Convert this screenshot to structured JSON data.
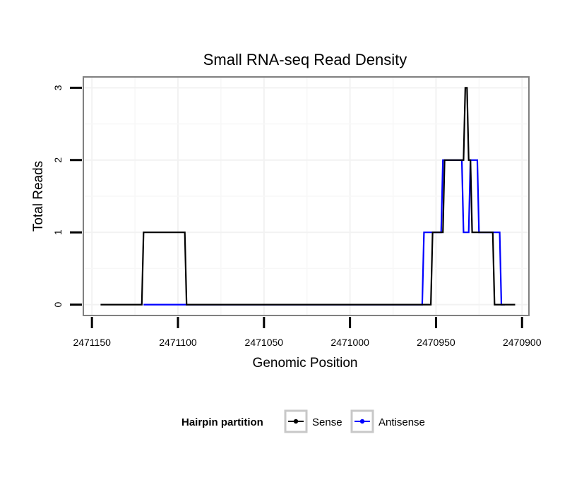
{
  "chart_data": {
    "type": "line",
    "title": "Small RNA-seq Read Density",
    "xlabel": "Genomic Position",
    "ylabel": "Total Reads",
    "xlim": [
      2471155,
      2470896
    ],
    "x_reversed": true,
    "ylim": [
      -0.15,
      3.15
    ],
    "grid": true,
    "x_ticks": [
      2471150,
      2471100,
      2471050,
      2471000,
      2470950,
      2470900
    ],
    "x_tick_labels": [
      "2471150",
      "2471100",
      "2471050",
      "2471000",
      "2470950",
      "2470900"
    ],
    "y_ticks": [
      0,
      1,
      2,
      3
    ],
    "y_tick_labels": [
      "0",
      "1",
      "2",
      "3"
    ],
    "legend": {
      "title": "Hairpin partition",
      "position": "bottom"
    },
    "series": [
      {
        "name": "Sense",
        "color": "#000000",
        "x": [
          2471145,
          2471121,
          2471120,
          2471096,
          2471095,
          2470953,
          2470952,
          2470946,
          2470945,
          2470934,
          2470933,
          2470932,
          2470931,
          2470930,
          2470929,
          2470917,
          2470916,
          2470915,
          2470914,
          2470904
        ],
        "y": [
          0,
          0,
          1,
          1,
          0,
          0,
          1,
          1,
          2,
          2,
          3,
          3,
          2,
          2,
          1,
          1,
          0,
          0,
          0,
          0
        ]
      },
      {
        "name": "Antisense",
        "color": "#0000ff",
        "x": [
          2471120,
          2471095,
          2471000,
          2470958,
          2470957,
          2470947,
          2470946,
          2470935,
          2470934,
          2470931,
          2470930,
          2470926,
          2470925,
          2470913,
          2470912,
          2470910
        ],
        "y": [
          0,
          0,
          0,
          0,
          1,
          1,
          2,
          2,
          1,
          1,
          2,
          2,
          1,
          1,
          0,
          0
        ]
      }
    ]
  }
}
